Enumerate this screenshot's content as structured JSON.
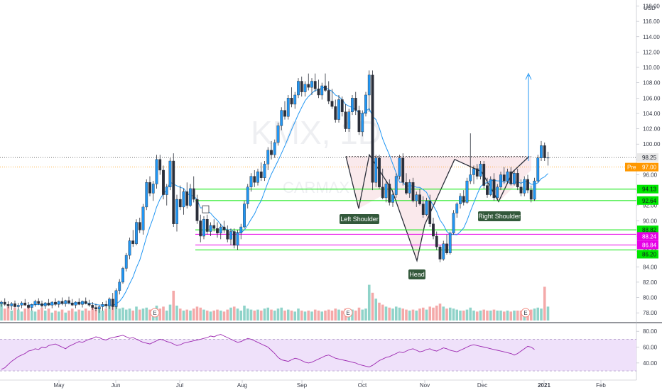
{
  "chart_data": {
    "type": "candlestick",
    "symbol_watermark": "KMX, 1D",
    "company_watermark": "CARMAX",
    "currency": "USD",
    "x_axis_labels": [
      "May",
      "Jun",
      "Jul",
      "Aug",
      "Sep",
      "Oct",
      "Nov",
      "Dec",
      "2021",
      "Feb"
    ],
    "y_axis": {
      "ylim": [
        77,
        118.6
      ],
      "ticks": [
        78.0,
        80.0,
        82.0,
        84.0,
        86.0,
        88.0,
        90.0,
        92.0,
        94.0,
        96.0,
        98.0,
        100.0,
        102.0,
        104.0,
        106.0,
        108.0,
        110.0,
        112.0,
        114.0,
        116.0,
        118.0
      ]
    },
    "price_tags": [
      {
        "value": "98.25",
        "style": "last"
      },
      {
        "value": "97.00",
        "style": "pre"
      },
      {
        "value": "94.13",
        "style": "green"
      },
      {
        "value": "92.64",
        "style": "green"
      },
      {
        "value": "88.82",
        "style": "green"
      },
      {
        "value": "88.24",
        "style": "magenta"
      },
      {
        "value": "86.84",
        "style": "magenta"
      },
      {
        "value": "86.20",
        "style": "green"
      }
    ],
    "pre_label": "Pre",
    "horizontal_levels": [
      {
        "value": 94.13,
        "color": "#00e600"
      },
      {
        "value": 92.64,
        "color": "#00e600"
      },
      {
        "value": 88.82,
        "color": "#00e600"
      },
      {
        "value": 88.24,
        "color": "#e600e6"
      },
      {
        "value": 86.84,
        "color": "#e600e6"
      },
      {
        "value": 86.2,
        "color": "#00e600"
      }
    ],
    "pattern_labels": [
      "Left Shoulder",
      "Head",
      "Right Shoulder"
    ],
    "earnings_marker": "E",
    "rsi": {
      "ticks": [
        "80.00",
        "60.00",
        "40.00"
      ],
      "upper": 70,
      "lower": 30
    },
    "candles": [
      [
        79.2,
        79.6,
        78.8,
        79.4,
        1.8
      ],
      [
        79.4,
        79.9,
        78.9,
        79.1,
        1.2
      ],
      [
        79.1,
        79.5,
        78.6,
        78.9,
        1.4
      ],
      [
        78.9,
        79.4,
        78.4,
        79.2,
        1.0
      ],
      [
        79.2,
        79.6,
        78.7,
        78.8,
        1.3
      ],
      [
        78.8,
        79.3,
        78.4,
        79.0,
        1.1
      ],
      [
        79.0,
        79.5,
        78.6,
        79.3,
        0.9
      ],
      [
        79.3,
        79.8,
        78.9,
        79.0,
        1.2
      ],
      [
        79.0,
        79.4,
        78.5,
        78.7,
        1.5
      ],
      [
        78.7,
        79.2,
        78.3,
        79.1,
        1.0
      ],
      [
        79.1,
        79.7,
        78.8,
        79.5,
        0.9
      ],
      [
        79.5,
        79.9,
        79.0,
        79.2,
        1.1
      ],
      [
        79.2,
        79.6,
        78.7,
        78.9,
        1.3
      ],
      [
        78.9,
        79.4,
        78.5,
        79.3,
        1.0
      ],
      [
        79.3,
        79.8,
        78.9,
        79.0,
        1.2
      ],
      [
        79.0,
        79.5,
        78.6,
        79.4,
        0.8
      ],
      [
        79.4,
        79.9,
        78.9,
        79.1,
        1.0
      ],
      [
        79.1,
        79.6,
        78.7,
        79.5,
        0.9
      ],
      [
        79.5,
        80.0,
        79.0,
        79.2,
        1.1
      ],
      [
        79.2,
        79.7,
        78.8,
        79.6,
        0.8
      ],
      [
        79.6,
        80.1,
        79.1,
        79.3,
        1.0
      ],
      [
        79.3,
        79.8,
        78.9,
        79.0,
        1.2
      ],
      [
        79.0,
        79.5,
        78.6,
        79.4,
        0.9
      ],
      [
        79.4,
        79.9,
        79.0,
        79.1,
        1.1
      ],
      [
        79.1,
        79.6,
        78.7,
        79.5,
        1.0
      ],
      [
        79.5,
        80.0,
        79.1,
        79.2,
        1.2
      ],
      [
        79.2,
        79.7,
        78.8,
        79.0,
        1.0
      ],
      [
        79.0,
        79.4,
        78.4,
        78.7,
        1.4
      ],
      [
        78.7,
        79.2,
        78.2,
        78.5,
        1.1
      ],
      [
        78.5,
        79.0,
        78.0,
        78.8,
        1.3
      ],
      [
        78.8,
        79.4,
        78.3,
        79.1,
        1.0
      ],
      [
        79.1,
        79.6,
        78.6,
        78.9,
        1.2
      ],
      [
        78.9,
        80.0,
        78.5,
        79.8,
        1.5
      ],
      [
        79.8,
        80.6,
        78.4,
        78.8,
        1.6
      ],
      [
        78.8,
        81.2,
        78.5,
        80.9,
        1.4
      ],
      [
        80.9,
        82.4,
        80.4,
        82.0,
        1.2
      ],
      [
        82.0,
        84.0,
        81.8,
        83.8,
        1.3
      ],
      [
        83.8,
        85.8,
        83.4,
        85.5,
        1.1
      ],
      [
        85.5,
        87.8,
        85.0,
        87.4,
        1.2
      ],
      [
        87.4,
        88.8,
        86.6,
        87.0,
        1.0
      ],
      [
        87.0,
        90.2,
        86.8,
        89.8,
        1.4
      ],
      [
        89.8,
        90.4,
        88.4,
        88.8,
        1.1
      ],
      [
        88.8,
        92.2,
        88.2,
        91.8,
        1.2
      ],
      [
        91.8,
        95.4,
        91.4,
        95.0,
        1.3
      ],
      [
        95.0,
        95.8,
        93.2,
        93.6,
        1.1
      ],
      [
        93.6,
        95.2,
        92.6,
        94.8,
        1.0
      ],
      [
        94.8,
        98.6,
        94.2,
        98.0,
        1.5
      ],
      [
        98.0,
        98.6,
        96.0,
        96.6,
        1.2
      ],
      [
        96.6,
        97.2,
        92.8,
        93.4,
        1.4
      ],
      [
        93.4,
        94.8,
        92.0,
        94.4,
        1.0
      ],
      [
        94.4,
        98.2,
        94.0,
        97.8,
        1.6
      ],
      [
        97.8,
        98.8,
        89.2,
        89.6,
        3.0
      ],
      [
        89.6,
        93.4,
        88.6,
        92.8,
        1.5
      ],
      [
        92.8,
        94.6,
        91.4,
        91.8,
        1.2
      ],
      [
        91.8,
        94.2,
        90.8,
        93.8,
        1.0
      ],
      [
        93.8,
        95.0,
        91.6,
        92.0,
        1.1
      ],
      [
        92.0,
        94.8,
        91.8,
        94.2,
        1.0
      ],
      [
        94.2,
        95.8,
        92.4,
        92.8,
        1.2
      ],
      [
        92.8,
        93.4,
        89.6,
        90.0,
        1.4
      ],
      [
        90.0,
        90.8,
        87.2,
        88.0,
        1.3
      ],
      [
        88.0,
        90.6,
        87.6,
        90.2,
        1.1
      ],
      [
        90.2,
        90.8,
        88.2,
        88.6,
        1.0
      ],
      [
        88.6,
        89.8,
        88.0,
        89.4,
        0.9
      ],
      [
        89.4,
        90.2,
        88.6,
        89.0,
        1.0
      ],
      [
        89.0,
        89.8,
        87.8,
        88.4,
        1.1
      ],
      [
        88.4,
        89.6,
        87.6,
        89.2,
        1.0
      ],
      [
        89.2,
        90.0,
        88.4,
        88.8,
        0.9
      ],
      [
        88.8,
        89.4,
        87.2,
        87.6,
        1.1
      ],
      [
        87.6,
        89.0,
        86.8,
        88.6,
        1.3
      ],
      [
        88.6,
        89.0,
        86.4,
        86.8,
        1.4
      ],
      [
        86.8,
        88.8,
        86.2,
        88.4,
        1.2
      ],
      [
        88.4,
        89.6,
        87.6,
        89.2,
        1.0
      ],
      [
        89.2,
        92.6,
        89.0,
        92.2,
        1.5
      ],
      [
        92.2,
        94.8,
        91.6,
        94.4,
        1.2
      ],
      [
        94.4,
        96.2,
        93.8,
        95.8,
        1.1
      ],
      [
        95.8,
        96.6,
        94.4,
        95.0,
        1.0
      ],
      [
        95.0,
        96.8,
        94.6,
        96.4,
        1.1
      ],
      [
        96.4,
        97.6,
        95.2,
        95.6,
        1.0
      ],
      [
        95.6,
        97.8,
        95.2,
        97.4,
        1.2
      ],
      [
        97.4,
        99.6,
        96.6,
        99.2,
        1.3
      ],
      [
        99.2,
        100.4,
        98.0,
        98.6,
        1.1
      ],
      [
        98.6,
        100.6,
        98.2,
        100.2,
        1.0
      ],
      [
        100.2,
        102.8,
        99.8,
        102.4,
        1.2
      ],
      [
        102.4,
        104.8,
        101.8,
        104.4,
        1.3
      ],
      [
        104.4,
        105.6,
        103.2,
        103.6,
        1.0
      ],
      [
        103.6,
        106.4,
        103.2,
        106.0,
        1.1
      ],
      [
        106.0,
        107.4,
        104.8,
        105.2,
        1.0
      ],
      [
        105.2,
        106.8,
        104.6,
        106.4,
        0.9
      ],
      [
        106.4,
        108.6,
        106.0,
        108.2,
        1.2
      ],
      [
        108.2,
        108.8,
        106.2,
        106.8,
        1.0
      ],
      [
        106.8,
        108.2,
        106.2,
        107.8,
        0.9
      ],
      [
        107.8,
        109.2,
        107.0,
        107.4,
        1.0
      ],
      [
        107.4,
        108.6,
        106.4,
        108.2,
        0.9
      ],
      [
        108.2,
        109.2,
        106.8,
        107.2,
        1.1
      ],
      [
        107.2,
        108.4,
        106.0,
        106.4,
        1.0
      ],
      [
        106.4,
        108.0,
        105.8,
        107.6,
        0.9
      ],
      [
        107.6,
        109.2,
        106.8,
        107.0,
        1.0
      ],
      [
        107.0,
        108.2,
        105.2,
        105.6,
        1.1
      ],
      [
        105.6,
        107.2,
        104.6,
        104.9,
        1.0
      ],
      [
        104.9,
        105.8,
        102.8,
        103.2,
        1.2
      ],
      [
        103.2,
        106.4,
        102.8,
        105.8,
        1.1
      ],
      [
        105.8,
        106.2,
        103.6,
        104.2,
        1.0
      ],
      [
        104.2,
        105.2,
        101.6,
        102.0,
        1.2
      ],
      [
        102.0,
        104.6,
        101.6,
        104.2,
        1.0
      ],
      [
        104.2,
        106.4,
        103.8,
        106.0,
        1.1
      ],
      [
        106.0,
        106.8,
        103.8,
        104.4,
        1.0
      ],
      [
        104.4,
        105.0,
        101.2,
        101.6,
        1.3
      ],
      [
        101.6,
        104.4,
        101.0,
        104.0,
        1.1
      ],
      [
        104.0,
        106.8,
        103.6,
        106.4,
        1.2
      ],
      [
        106.4,
        109.6,
        104.2,
        109.0,
        3.6
      ],
      [
        109.0,
        109.6,
        94.0,
        95.0,
        2.8
      ],
      [
        95.0,
        98.6,
        94.4,
        98.2,
        2.2
      ],
      [
        98.2,
        98.6,
        94.2,
        94.4,
        1.8
      ],
      [
        94.4,
        96.8,
        92.8,
        93.0,
        1.6
      ],
      [
        93.0,
        95.2,
        92.4,
        94.8,
        1.4
      ],
      [
        94.8,
        95.4,
        92.0,
        92.4,
        1.3
      ],
      [
        92.4,
        93.8,
        91.8,
        93.4,
        1.2
      ],
      [
        93.4,
        96.2,
        93.0,
        95.8,
        1.4
      ],
      [
        95.8,
        98.6,
        95.4,
        98.2,
        1.3
      ],
      [
        98.2,
        98.8,
        94.6,
        95.0,
        1.2
      ],
      [
        95.0,
        96.2,
        93.4,
        93.6,
        1.1
      ],
      [
        93.6,
        95.4,
        93.0,
        95.0,
        1.0
      ],
      [
        95.0,
        95.6,
        92.4,
        92.6,
        1.1
      ],
      [
        92.6,
        93.8,
        91.8,
        93.4,
        1.0
      ],
      [
        93.4,
        94.2,
        92.0,
        92.2,
        1.2
      ],
      [
        92.2,
        93.2,
        90.4,
        90.8,
        1.3
      ],
      [
        90.8,
        93.0,
        90.6,
        92.6,
        1.1
      ],
      [
        92.6,
        93.4,
        89.2,
        89.6,
        1.4
      ],
      [
        89.6,
        90.4,
        87.6,
        88.0,
        1.3
      ],
      [
        88.0,
        88.6,
        86.2,
        86.6,
        1.5
      ],
      [
        86.6,
        86.8,
        84.6,
        85.0,
        1.7
      ],
      [
        85.0,
        87.4,
        84.8,
        87.0,
        1.4
      ],
      [
        87.0,
        88.2,
        85.6,
        85.8,
        1.2
      ],
      [
        85.8,
        88.6,
        85.6,
        88.4,
        1.3
      ],
      [
        88.4,
        91.4,
        88.2,
        91.0,
        1.2
      ],
      [
        91.0,
        92.4,
        90.4,
        92.2,
        1.1
      ],
      [
        92.2,
        93.6,
        91.6,
        93.2,
        1.0
      ],
      [
        93.2,
        94.0,
        92.0,
        92.4,
        1.0
      ],
      [
        92.4,
        95.6,
        92.2,
        95.2,
        1.1
      ],
      [
        95.2,
        101.4,
        94.8,
        96.0,
        1.3
      ],
      [
        96.0,
        97.2,
        94.8,
        96.8,
        1.0
      ],
      [
        96.8,
        97.4,
        95.4,
        95.8,
        0.9
      ],
      [
        95.8,
        97.8,
        95.4,
        97.4,
        1.0
      ],
      [
        97.4,
        97.8,
        94.2,
        94.6,
        1.1
      ],
      [
        94.6,
        95.6,
        93.0,
        93.4,
        1.0
      ],
      [
        93.4,
        95.8,
        93.2,
        95.4,
        1.0
      ],
      [
        95.4,
        96.2,
        92.6,
        93.0,
        1.1
      ],
      [
        93.0,
        94.8,
        92.6,
        94.4,
        1.0
      ],
      [
        94.4,
        96.4,
        94.0,
        96.0,
        1.0
      ],
      [
        96.0,
        97.0,
        94.8,
        95.2,
        0.9
      ],
      [
        95.2,
        96.8,
        94.8,
        96.4,
        1.0
      ],
      [
        96.4,
        97.0,
        94.6,
        94.8,
        0.9
      ],
      [
        94.8,
        96.6,
        94.6,
        96.2,
        1.0
      ],
      [
        96.2,
        96.8,
        94.0,
        94.4,
        1.0
      ],
      [
        94.4,
        95.4,
        93.2,
        93.6,
        1.0
      ],
      [
        93.6,
        95.8,
        93.2,
        95.4,
        1.1
      ],
      [
        95.4,
        96.0,
        93.6,
        94.0,
        1.0
      ],
      [
        94.0,
        94.6,
        92.4,
        92.8,
        1.1
      ],
      [
        92.8,
        95.6,
        92.6,
        95.2,
        1.2
      ],
      [
        95.2,
        98.6,
        95.0,
        98.2,
        1.3
      ],
      [
        98.2,
        100.4,
        97.8,
        99.8,
        1.2
      ],
      [
        99.8,
        100.2,
        97.8,
        98.2,
        3.4
      ],
      [
        98.2,
        99.0,
        97.2,
        98.25,
        1.4
      ]
    ],
    "rsi_values": [
      32,
      34,
      38,
      42,
      45,
      48,
      50,
      52,
      55,
      56,
      58,
      57,
      60,
      59,
      62,
      63,
      64,
      62,
      60,
      58,
      61,
      63,
      65,
      67,
      66,
      68,
      70,
      71,
      73,
      72,
      70,
      69,
      71,
      72,
      73,
      74,
      75,
      73,
      71,
      72,
      70,
      68,
      66,
      65,
      64,
      66,
      68,
      70,
      69,
      67,
      66,
      64,
      62,
      63,
      65,
      66,
      67,
      68,
      69,
      70,
      71,
      72,
      74,
      73,
      75,
      76,
      74,
      72,
      70,
      68,
      66,
      67,
      69,
      71,
      70,
      68,
      66,
      64,
      62,
      60,
      56,
      52,
      47,
      44,
      43,
      42,
      44,
      46,
      45,
      43,
      41,
      40,
      41,
      43,
      45,
      47,
      49,
      50,
      48,
      46,
      45,
      44,
      43,
      42,
      41,
      40,
      38,
      37,
      36,
      35,
      37,
      40,
      43,
      45,
      47,
      48,
      50,
      52,
      54,
      53,
      55,
      57,
      58,
      56,
      54,
      55,
      57,
      58,
      56,
      55,
      57,
      59,
      58,
      56,
      55,
      54,
      56,
      58,
      60,
      62,
      63,
      62,
      61,
      60,
      59,
      58,
      57,
      56,
      55,
      54,
      53,
      52,
      50,
      52,
      55,
      58,
      61,
      60,
      57
    ]
  }
}
